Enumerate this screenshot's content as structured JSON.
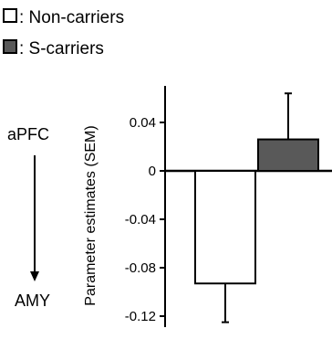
{
  "chart_data": {
    "type": "bar",
    "categories": [
      "Non-carriers",
      "S-carriers"
    ],
    "series": [
      {
        "name": "Non-carriers",
        "value": -0.093,
        "sem": 0.032,
        "color": "#ffffff"
      },
      {
        "name": "S-carriers",
        "value": 0.026,
        "sem": 0.038,
        "color": "#595959"
      }
    ],
    "ylabel": "Parameter estimates (SEM)",
    "ylim": [
      -0.13,
      0.07
    ],
    "yticks": [
      0.04,
      0,
      -0.04,
      -0.08,
      -0.12
    ],
    "ytick_labels": [
      "0.04",
      "0",
      "-0.04",
      "-0.08",
      "-0.12"
    ],
    "legend": {
      "placement": "top-left",
      "entries": [
        {
          "label": ": Non-carriers",
          "color": "#ffffff"
        },
        {
          "label": ": S-carriers",
          "color": "#595959"
        }
      ]
    },
    "pathway": {
      "from": "aPFC",
      "to": "AMY"
    }
  }
}
